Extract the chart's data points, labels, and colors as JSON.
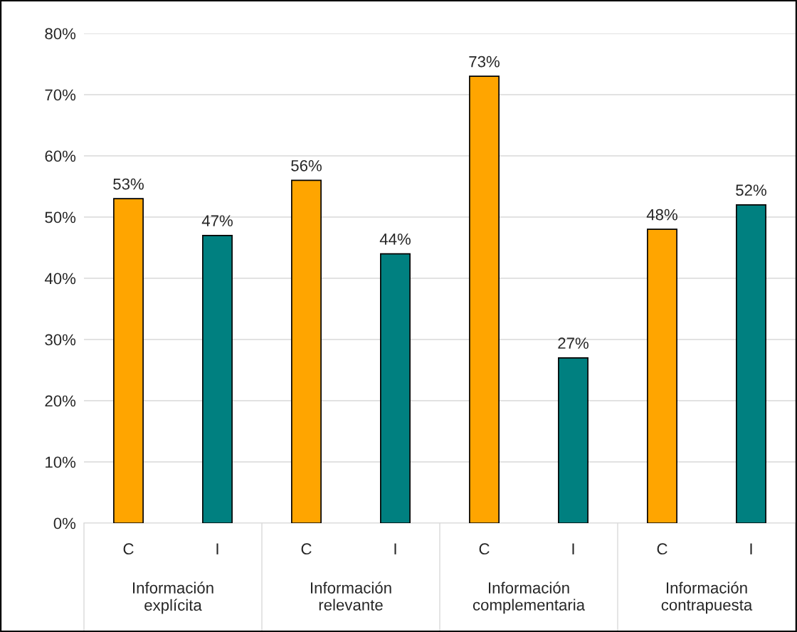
{
  "chart_data": {
    "type": "bar",
    "categories": [
      "C",
      "I",
      "C",
      "I",
      "C",
      "I",
      "C",
      "I"
    ],
    "values": [
      53,
      47,
      56,
      44,
      73,
      27,
      48,
      52
    ],
    "colors": [
      "#ffa500",
      "#008080",
      "#ffa500",
      "#008080",
      "#ffa500",
      "#008080",
      "#ffa500",
      "#008080"
    ],
    "value_labels": [
      "53%",
      "47%",
      "56%",
      "44%",
      "73%",
      "27%",
      "48%",
      "52%"
    ],
    "annotations": [
      "Información\nexplícita",
      "Información\nrelevante",
      "Información\ncomplementaria",
      "Información\ncontrapuesta"
    ],
    "ylim": [
      0,
      80
    ],
    "yticks": [
      {
        "value": 0,
        "label": "0%"
      },
      {
        "value": 10,
        "label": "10%"
      },
      {
        "value": 20,
        "label": "20%"
      },
      {
        "value": 30,
        "label": "30%"
      },
      {
        "value": 40,
        "label": "40%"
      },
      {
        "value": 50,
        "label": "50%"
      },
      {
        "value": 60,
        "label": "60%"
      },
      {
        "value": 70,
        "label": "70%"
      },
      {
        "value": 80,
        "label": "80%"
      }
    ],
    "grid": "y"
  }
}
